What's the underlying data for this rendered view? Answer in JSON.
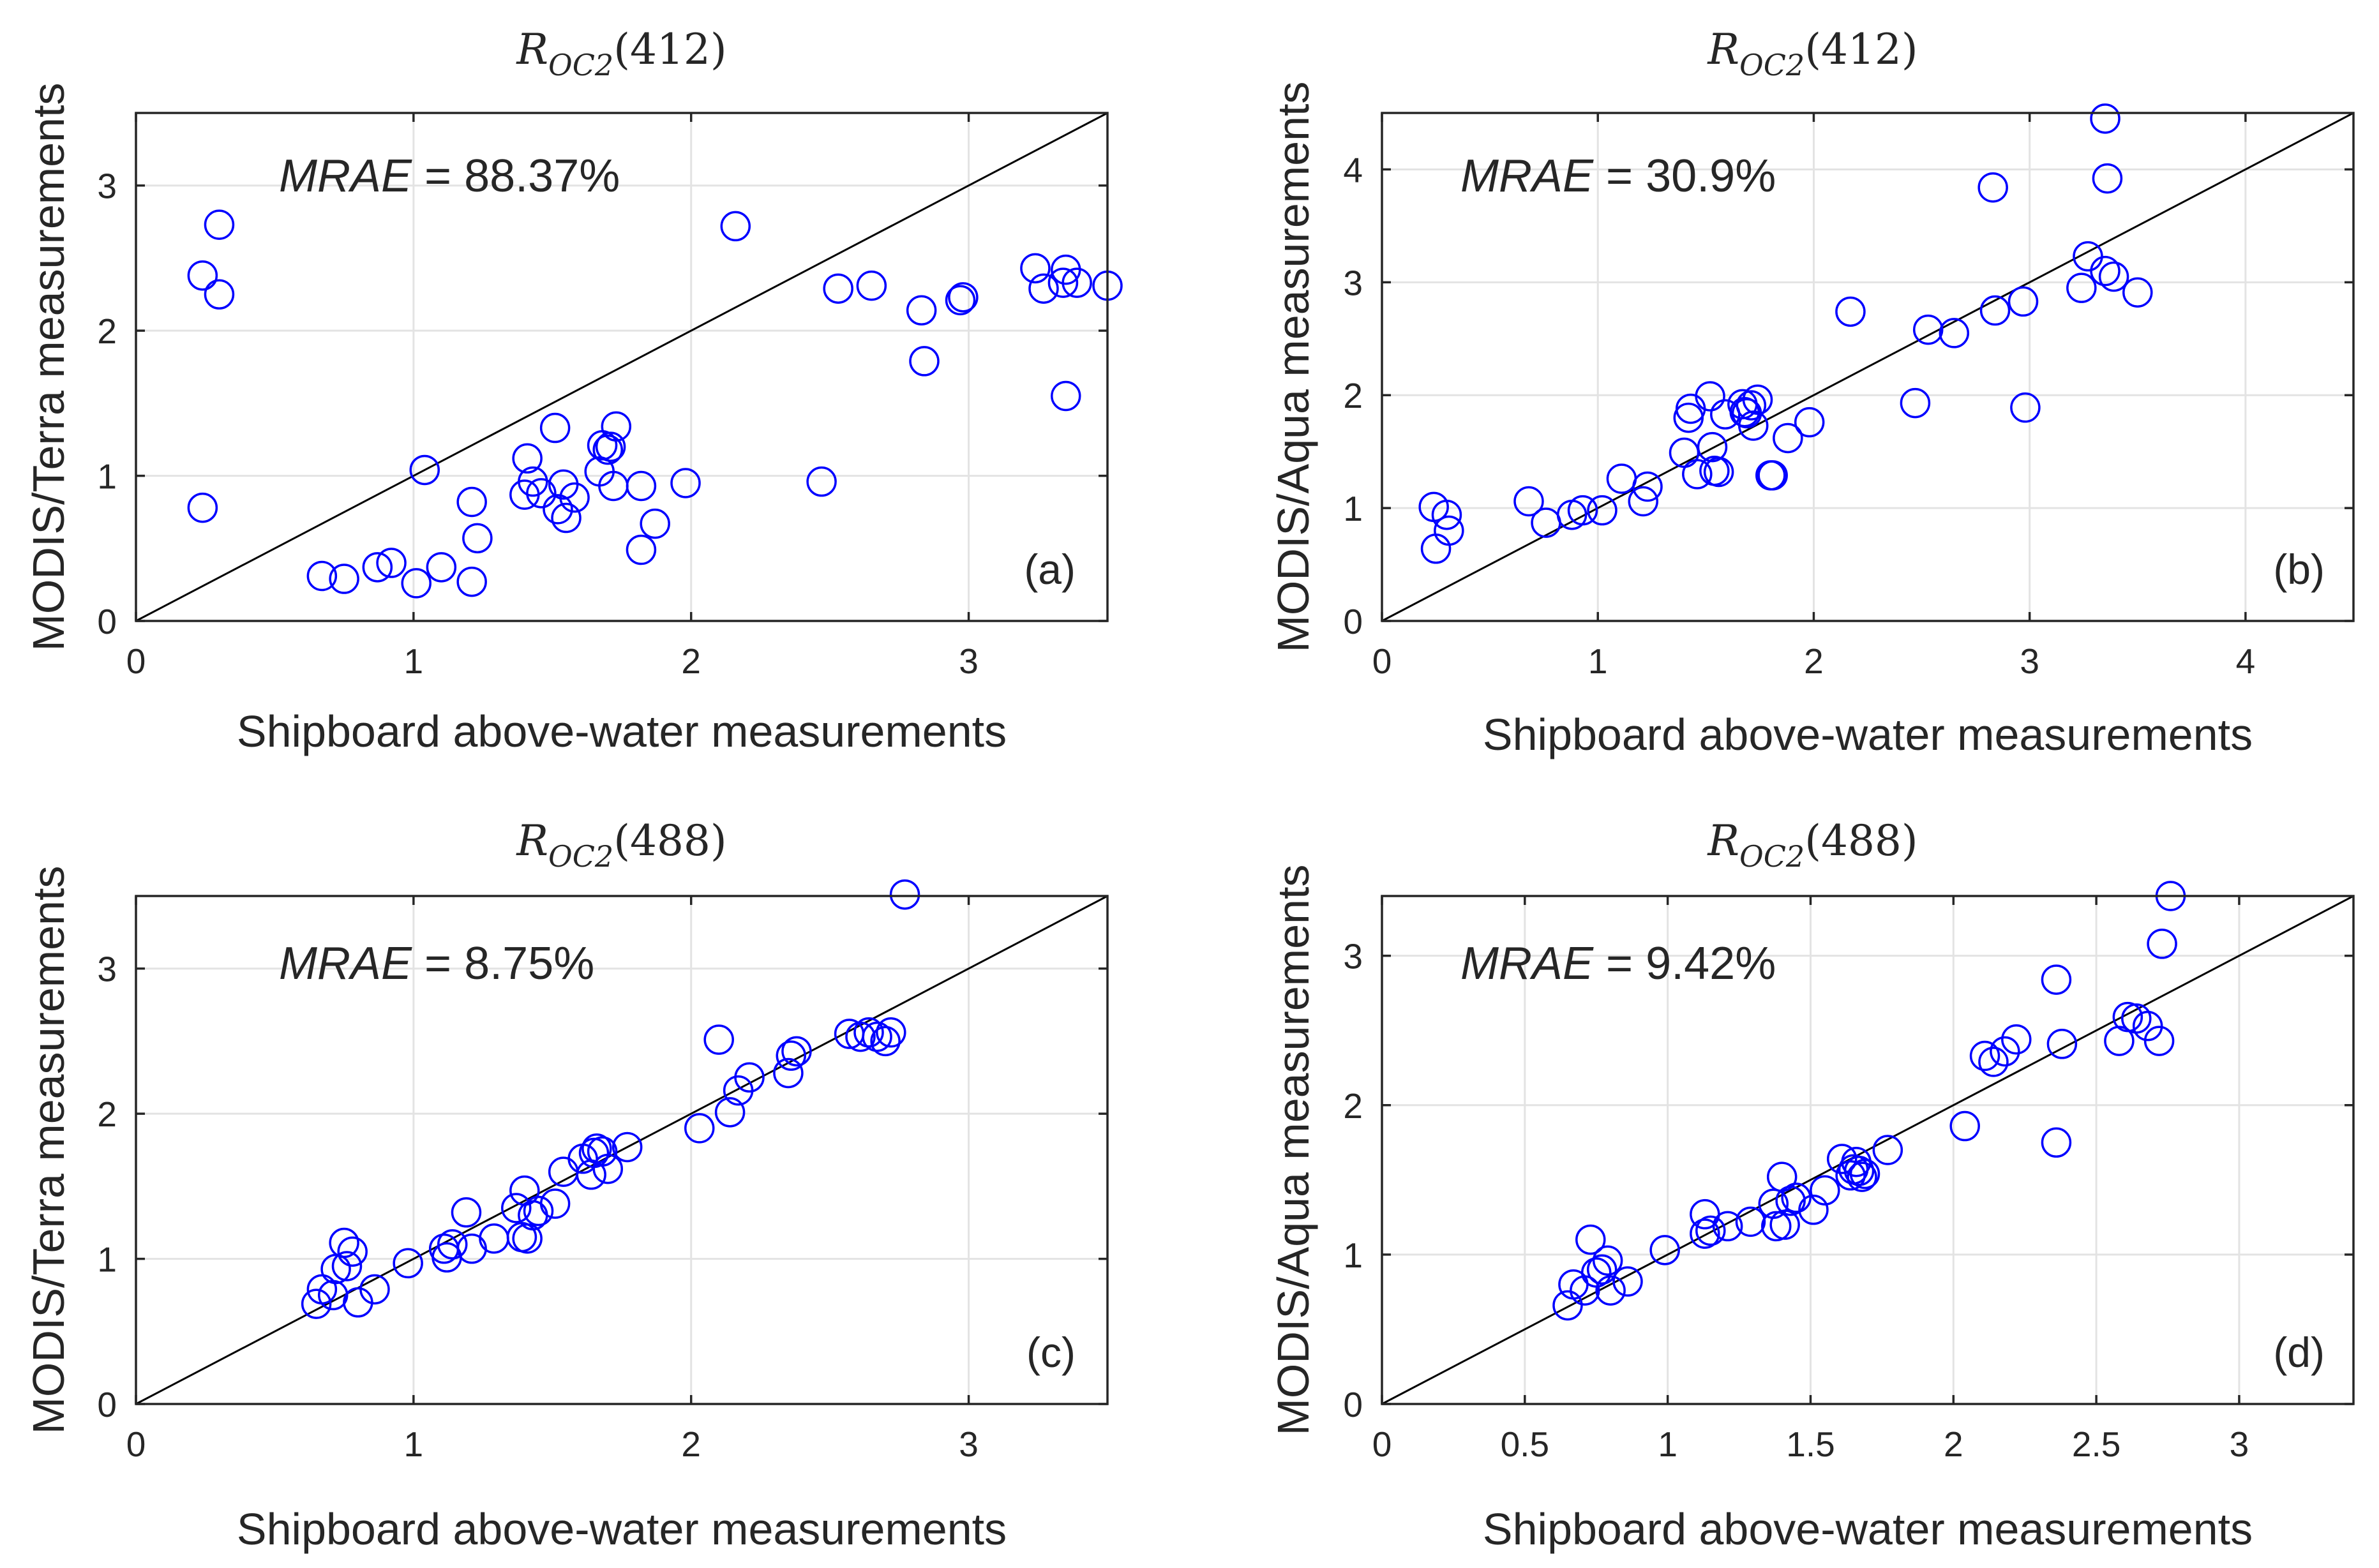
{
  "chart_data": [
    {
      "type": "scatter",
      "panel": "(a)",
      "title": "R_OC2(412)",
      "title_main": "R",
      "title_sub": "OC2",
      "title_arg": "(412)",
      "xlabel": "Shipboard above-water measurements",
      "ylabel": "MODIS/Terra measurements",
      "mrae_label": "MRAE",
      "mrae_value": " = 88.37%",
      "xlim": [
        0,
        3.5
      ],
      "ylim": [
        0,
        3.5
      ],
      "xticks": [
        0,
        1,
        2,
        3
      ],
      "xtick_labels": [
        "0",
        "1",
        "2",
        "3"
      ],
      "yticks": [
        0,
        1,
        2,
        3
      ],
      "ytick_labels": [
        "0",
        "1",
        "2",
        "3"
      ],
      "grid": true,
      "reference_line": "1:1",
      "marker_color": "#0000ff",
      "points": [
        [
          0.24,
          2.38
        ],
        [
          0.3,
          2.73
        ],
        [
          0.3,
          2.25
        ],
        [
          0.24,
          0.78
        ],
        [
          0.67,
          0.31
        ],
        [
          0.75,
          0.29
        ],
        [
          0.87,
          0.37
        ],
        [
          0.92,
          0.4
        ],
        [
          1.01,
          0.26
        ],
        [
          1.04,
          1.04
        ],
        [
          1.1,
          0.37
        ],
        [
          1.21,
          0.82
        ],
        [
          1.23,
          0.57
        ],
        [
          1.21,
          0.27
        ],
        [
          1.4,
          0.87
        ],
        [
          1.41,
          1.12
        ],
        [
          1.43,
          0.96
        ],
        [
          1.46,
          0.88
        ],
        [
          1.51,
          1.33
        ],
        [
          1.52,
          0.77
        ],
        [
          1.54,
          0.94
        ],
        [
          1.55,
          0.71
        ],
        [
          1.58,
          0.85
        ],
        [
          1.67,
          1.03
        ],
        [
          1.68,
          1.21
        ],
        [
          1.7,
          1.18
        ],
        [
          1.71,
          1.2
        ],
        [
          1.72,
          0.93
        ],
        [
          1.73,
          1.34
        ],
        [
          1.82,
          0.93
        ],
        [
          1.82,
          0.49
        ],
        [
          1.87,
          0.67
        ],
        [
          1.98,
          0.95
        ],
        [
          2.16,
          2.72
        ],
        [
          2.47,
          0.96
        ],
        [
          2.53,
          2.29
        ],
        [
          2.65,
          2.31
        ],
        [
          2.83,
          2.14
        ],
        [
          2.84,
          1.79
        ],
        [
          2.97,
          2.21
        ],
        [
          2.98,
          2.23
        ],
        [
          3.24,
          2.43
        ],
        [
          3.27,
          2.29
        ],
        [
          3.34,
          2.33
        ],
        [
          3.35,
          2.42
        ],
        [
          3.39,
          2.33
        ],
        [
          3.35,
          1.55
        ],
        [
          3.5,
          2.31
        ]
      ]
    },
    {
      "type": "scatter",
      "panel": "(b)",
      "title": "R_OC2(412)",
      "title_main": "R",
      "title_sub": "OC2",
      "title_arg": "(412)",
      "xlabel": "Shipboard above-water measurements",
      "ylabel": "MODIS/Aqua measurements",
      "mrae_label": "MRAE",
      "mrae_value": " = 30.9%",
      "xlim": [
        0,
        4.5
      ],
      "ylim": [
        0,
        4.5
      ],
      "xticks": [
        0,
        1,
        2,
        3,
        4
      ],
      "xtick_labels": [
        "0",
        "1",
        "2",
        "3",
        "4"
      ],
      "yticks": [
        0,
        1,
        2,
        3,
        4
      ],
      "ytick_labels": [
        "0",
        "1",
        "2",
        "3",
        "4"
      ],
      "grid": true,
      "reference_line": "1:1",
      "marker_color": "#0000ff",
      "points": [
        [
          0.24,
          1.01
        ],
        [
          0.3,
          0.94
        ],
        [
          0.25,
          0.64
        ],
        [
          0.31,
          0.8
        ],
        [
          0.68,
          1.06
        ],
        [
          0.76,
          0.87
        ],
        [
          0.88,
          0.94
        ],
        [
          0.93,
          0.98
        ],
        [
          1.02,
          0.98
        ],
        [
          1.11,
          1.26
        ],
        [
          1.21,
          1.06
        ],
        [
          1.23,
          1.19
        ],
        [
          1.4,
          1.49
        ],
        [
          1.42,
          1.8
        ],
        [
          1.43,
          1.88
        ],
        [
          1.46,
          1.3
        ],
        [
          1.52,
          1.99
        ],
        [
          1.53,
          1.54
        ],
        [
          1.54,
          1.33
        ],
        [
          1.56,
          1.32
        ],
        [
          1.59,
          1.83
        ],
        [
          1.67,
          1.92
        ],
        [
          1.68,
          1.85
        ],
        [
          1.69,
          1.84
        ],
        [
          1.71,
          1.91
        ],
        [
          1.72,
          1.73
        ],
        [
          1.74,
          1.96
        ],
        [
          1.8,
          1.29
        ],
        [
          1.81,
          1.29
        ],
        [
          1.88,
          1.62
        ],
        [
          1.98,
          1.76
        ],
        [
          2.17,
          2.74
        ],
        [
          2.47,
          1.93
        ],
        [
          2.53,
          2.58
        ],
        [
          2.65,
          2.55
        ],
        [
          2.83,
          3.84
        ],
        [
          2.84,
          2.75
        ],
        [
          2.97,
          2.83
        ],
        [
          2.98,
          1.89
        ],
        [
          3.24,
          2.95
        ],
        [
          3.27,
          3.23
        ],
        [
          3.35,
          3.1
        ],
        [
          3.35,
          4.45
        ],
        [
          3.36,
          3.92
        ],
        [
          3.39,
          3.05
        ],
        [
          3.5,
          2.91
        ]
      ]
    },
    {
      "type": "scatter",
      "panel": "(c)",
      "title": "R_OC2(488)",
      "title_main": "R",
      "title_sub": "OC2",
      "title_arg": "(488)",
      "xlabel": "Shipboard above-water measurements",
      "ylabel": "MODIS/Terra measurements",
      "mrae_label": "MRAE",
      "mrae_value": " = 8.75%",
      "xlim": [
        0,
        3.5
      ],
      "ylim": [
        0,
        3.5
      ],
      "xticks": [
        0,
        1,
        2,
        3
      ],
      "xtick_labels": [
        "0",
        "1",
        "2",
        "3"
      ],
      "yticks": [
        0,
        1,
        2,
        3
      ],
      "ytick_labels": [
        "0",
        "1",
        "2",
        "3"
      ],
      "grid": true,
      "reference_line": "1:1",
      "marker_color": "#0000ff",
      "points": [
        [
          0.65,
          0.69
        ],
        [
          0.67,
          0.79
        ],
        [
          0.71,
          0.75
        ],
        [
          0.72,
          0.93
        ],
        [
          0.75,
          1.11
        ],
        [
          0.76,
          0.95
        ],
        [
          0.78,
          1.05
        ],
        [
          0.8,
          0.7
        ],
        [
          0.86,
          0.79
        ],
        [
          0.98,
          0.97
        ],
        [
          1.11,
          1.07
        ],
        [
          1.12,
          1.01
        ],
        [
          1.14,
          1.1
        ],
        [
          1.19,
          1.32
        ],
        [
          1.21,
          1.07
        ],
        [
          1.29,
          1.14
        ],
        [
          1.37,
          1.35
        ],
        [
          1.39,
          1.15
        ],
        [
          1.4,
          1.47
        ],
        [
          1.41,
          1.14
        ],
        [
          1.43,
          1.3
        ],
        [
          1.45,
          1.33
        ],
        [
          1.51,
          1.38
        ],
        [
          1.54,
          1.6
        ],
        [
          1.61,
          1.69
        ],
        [
          1.64,
          1.58
        ],
        [
          1.65,
          1.73
        ],
        [
          1.66,
          1.76
        ],
        [
          1.68,
          1.74
        ],
        [
          1.7,
          1.62
        ],
        [
          1.77,
          1.77
        ],
        [
          2.03,
          1.9
        ],
        [
          2.1,
          2.51
        ],
        [
          2.14,
          2.01
        ],
        [
          2.17,
          2.16
        ],
        [
          2.21,
          2.25
        ],
        [
          2.35,
          2.28
        ],
        [
          2.36,
          2.4
        ],
        [
          2.38,
          2.43
        ],
        [
          2.57,
          2.55
        ],
        [
          2.61,
          2.53
        ],
        [
          2.64,
          2.56
        ],
        [
          2.67,
          2.53
        ],
        [
          2.7,
          2.5
        ],
        [
          2.72,
          2.56
        ],
        [
          2.77,
          3.51
        ]
      ]
    },
    {
      "type": "scatter",
      "panel": "(d)",
      "title": "R_OC2(488)",
      "title_main": "R",
      "title_sub": "OC2",
      "title_arg": "(488)",
      "xlabel": "Shipboard above-water measurements",
      "ylabel": "MODIS/Aqua measurements",
      "mrae_label": "MRAE",
      "mrae_value": " = 9.42%",
      "xlim": [
        0,
        3.4
      ],
      "ylim": [
        0,
        3.4
      ],
      "xticks": [
        0,
        0.5,
        1,
        1.5,
        2,
        2.5,
        3
      ],
      "xtick_labels": [
        "0",
        "0.5",
        "1",
        "1.5",
        "2",
        "2.5",
        "3"
      ],
      "yticks": [
        0,
        1,
        2,
        3
      ],
      "ytick_labels": [
        "0",
        "1",
        "2",
        "3"
      ],
      "grid": true,
      "reference_line": "1:1",
      "marker_color": "#0000ff",
      "points": [
        [
          0.65,
          0.66
        ],
        [
          0.67,
          0.8
        ],
        [
          0.71,
          0.76
        ],
        [
          0.73,
          1.1
        ],
        [
          0.75,
          0.88
        ],
        [
          0.77,
          0.9
        ],
        [
          0.79,
          0.96
        ],
        [
          0.8,
          0.76
        ],
        [
          0.86,
          0.82
        ],
        [
          0.99,
          1.03
        ],
        [
          1.13,
          1.27
        ],
        [
          1.13,
          1.14
        ],
        [
          1.15,
          1.16
        ],
        [
          1.21,
          1.19
        ],
        [
          1.29,
          1.22
        ],
        [
          1.37,
          1.34
        ],
        [
          1.38,
          1.19
        ],
        [
          1.4,
          1.52
        ],
        [
          1.41,
          1.2
        ],
        [
          1.43,
          1.36
        ],
        [
          1.45,
          1.38
        ],
        [
          1.51,
          1.3
        ],
        [
          1.55,
          1.43
        ],
        [
          1.61,
          1.64
        ],
        [
          1.64,
          1.53
        ],
        [
          1.65,
          1.57
        ],
        [
          1.66,
          1.62
        ],
        [
          1.67,
          1.56
        ],
        [
          1.68,
          1.52
        ],
        [
          1.69,
          1.54
        ],
        [
          1.77,
          1.7
        ],
        [
          2.04,
          1.86
        ],
        [
          2.11,
          2.33
        ],
        [
          2.14,
          2.29
        ],
        [
          2.18,
          2.36
        ],
        [
          2.22,
          2.44
        ],
        [
          2.36,
          2.84
        ],
        [
          2.36,
          1.75
        ],
        [
          2.38,
          2.41
        ],
        [
          2.58,
          2.43
        ],
        [
          2.61,
          2.59
        ],
        [
          2.64,
          2.58
        ],
        [
          2.68,
          2.53
        ],
        [
          2.72,
          2.43
        ],
        [
          2.73,
          3.08
        ],
        [
          2.76,
          3.4
        ]
      ]
    }
  ]
}
